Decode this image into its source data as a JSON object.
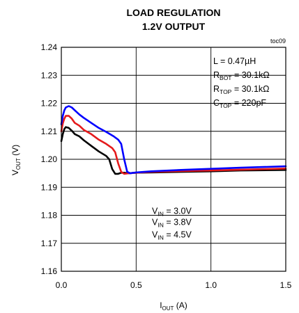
{
  "chart_data": {
    "type": "line",
    "title": "LOAD REGULATION",
    "subtitle": "1.2V OUTPUT",
    "figure_id": "toc09",
    "xlabel": {
      "main": "I",
      "sub": "OUT",
      "unit": " (A)"
    },
    "ylabel": {
      "main": "V",
      "sub": "OUT",
      "unit": " (V)"
    },
    "xlim": [
      0,
      1.5
    ],
    "ylim": [
      1.16,
      1.24
    ],
    "xticks": [
      "0.0",
      "0.5",
      "1.0",
      "1.5"
    ],
    "yticks": [
      "1.16",
      "1.17",
      "1.18",
      "1.19",
      "1.20",
      "1.21",
      "1.22",
      "1.23",
      "1.24"
    ],
    "grid": true,
    "annotations": [
      {
        "main": "L = 0.47µH",
        "sub": "",
        "tail": ""
      },
      {
        "main": "R",
        "sub": "BOT",
        "tail": " = 30.1kΩ"
      },
      {
        "main": "R",
        "sub": "TOP",
        "tail": " = 30.1kΩ"
      },
      {
        "main": "C",
        "sub": "TOP",
        "tail": " = 220pF"
      }
    ],
    "series": [
      {
        "name": "VIN = 3.0V",
        "label": {
          "main": "V",
          "sub": "IN",
          "tail": " = 3.0V"
        },
        "color": "#000000",
        "x": [
          0.0,
          0.01,
          0.02,
          0.03,
          0.05,
          0.07,
          0.09,
          0.12,
          0.15,
          0.2,
          0.25,
          0.3,
          0.32,
          0.34,
          0.36,
          0.38,
          0.4,
          0.42,
          0.45,
          0.5,
          0.6,
          0.8,
          1.0,
          1.2,
          1.5
        ],
        "y": [
          1.2065,
          1.209,
          1.2108,
          1.2115,
          1.2112,
          1.2102,
          1.209,
          1.2082,
          1.2068,
          1.2048,
          1.2028,
          1.2012,
          1.2,
          1.1965,
          1.1948,
          1.1948,
          1.1952,
          1.1952,
          1.195,
          1.1952,
          1.1953,
          1.1955,
          1.1957,
          1.196,
          1.1962
        ]
      },
      {
        "name": "VIN = 3.8V",
        "label": {
          "main": "V",
          "sub": "IN",
          "tail": " = 3.8V"
        },
        "color": "#e41a1c",
        "x": [
          0.0,
          0.01,
          0.02,
          0.03,
          0.05,
          0.07,
          0.09,
          0.12,
          0.15,
          0.2,
          0.25,
          0.3,
          0.34,
          0.36,
          0.38,
          0.4,
          0.42,
          0.45,
          0.5,
          0.6,
          0.8,
          1.0,
          1.2,
          1.5
        ],
        "y": [
          1.21,
          1.2128,
          1.2145,
          1.2155,
          1.2155,
          1.2145,
          1.213,
          1.212,
          1.2105,
          1.209,
          1.207,
          1.2055,
          1.204,
          1.2025,
          1.1985,
          1.1955,
          1.1948,
          1.195,
          1.1952,
          1.1955,
          1.1958,
          1.196,
          1.1963,
          1.1967
        ]
      },
      {
        "name": "VIN = 4.5V",
        "label": {
          "main": "V",
          "sub": "IN",
          "tail": " = 4.5V"
        },
        "color": "#0000ff",
        "x": [
          0.0,
          0.01,
          0.02,
          0.03,
          0.05,
          0.07,
          0.09,
          0.12,
          0.15,
          0.2,
          0.25,
          0.3,
          0.35,
          0.38,
          0.4,
          0.42,
          0.44,
          0.46,
          0.5,
          0.6,
          0.8,
          1.0,
          1.2,
          1.5
        ],
        "y": [
          1.2125,
          1.2155,
          1.2175,
          1.2185,
          1.219,
          1.2185,
          1.2175,
          1.216,
          1.2148,
          1.213,
          1.2112,
          1.2098,
          1.2082,
          1.207,
          1.2055,
          1.2,
          1.1955,
          1.195,
          1.1953,
          1.1957,
          1.1962,
          1.1966,
          1.197,
          1.1975
        ]
      }
    ]
  }
}
